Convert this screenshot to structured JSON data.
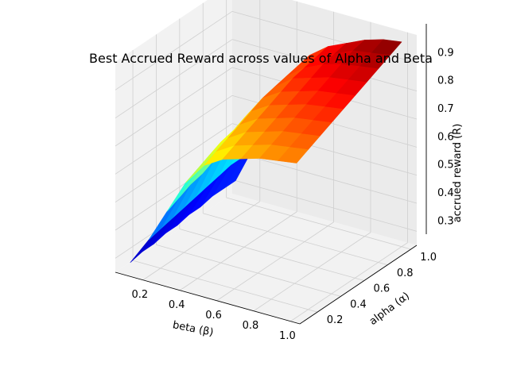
{
  "chart_data": {
    "type": "surface3d",
    "title": "Best Accrued Reward across values of Alpha and Beta",
    "xlabel": "beta (β)",
    "ylabel": "alpha (α)",
    "zlabel": "accrued reward (R)",
    "xlim": [
      0.05,
      1.05
    ],
    "ylim": [
      0.05,
      1.05
    ],
    "zlim": [
      0.25,
      1.0
    ],
    "xticks": [
      "0.2",
      "0.4",
      "0.6",
      "0.8",
      "1.0"
    ],
    "yticks": [
      "0.2",
      "0.4",
      "0.6",
      "0.8",
      "1.0"
    ],
    "zticks": [
      "0.3",
      "0.4",
      "0.5",
      "0.6",
      "0.7",
      "0.8",
      "0.9"
    ],
    "grid": true,
    "colormap": "jet",
    "beta": [
      0.1,
      0.2,
      0.3,
      0.4,
      0.5,
      0.6,
      0.7,
      0.8,
      0.9,
      1.0
    ],
    "alpha": [
      0.1,
      0.2,
      0.3,
      0.4,
      0.5,
      0.6,
      0.7,
      0.8,
      0.9,
      1.0
    ],
    "reward": [
      [
        0.28,
        0.29,
        0.29,
        0.3,
        0.3,
        0.31,
        0.31,
        0.32,
        0.32,
        0.32
      ],
      [
        0.38,
        0.39,
        0.4,
        0.41,
        0.42,
        0.43,
        0.44,
        0.45,
        0.45,
        0.46
      ],
      [
        0.5,
        0.52,
        0.54,
        0.55,
        0.57,
        0.58,
        0.59,
        0.6,
        0.61,
        0.62
      ],
      [
        0.62,
        0.64,
        0.66,
        0.68,
        0.69,
        0.71,
        0.72,
        0.73,
        0.74,
        0.75
      ],
      [
        0.7,
        0.72,
        0.74,
        0.76,
        0.78,
        0.8,
        0.81,
        0.82,
        0.83,
        0.84
      ],
      [
        0.74,
        0.76,
        0.78,
        0.8,
        0.82,
        0.84,
        0.86,
        0.87,
        0.88,
        0.89
      ],
      [
        0.76,
        0.78,
        0.8,
        0.82,
        0.84,
        0.86,
        0.88,
        0.9,
        0.91,
        0.92
      ],
      [
        0.78,
        0.8,
        0.82,
        0.84,
        0.86,
        0.88,
        0.9,
        0.92,
        0.94,
        0.95
      ],
      [
        0.79,
        0.81,
        0.83,
        0.85,
        0.87,
        0.89,
        0.91,
        0.93,
        0.95,
        0.97
      ],
      [
        0.8,
        0.82,
        0.84,
        0.86,
        0.88,
        0.9,
        0.92,
        0.94,
        0.96,
        0.98
      ]
    ]
  }
}
